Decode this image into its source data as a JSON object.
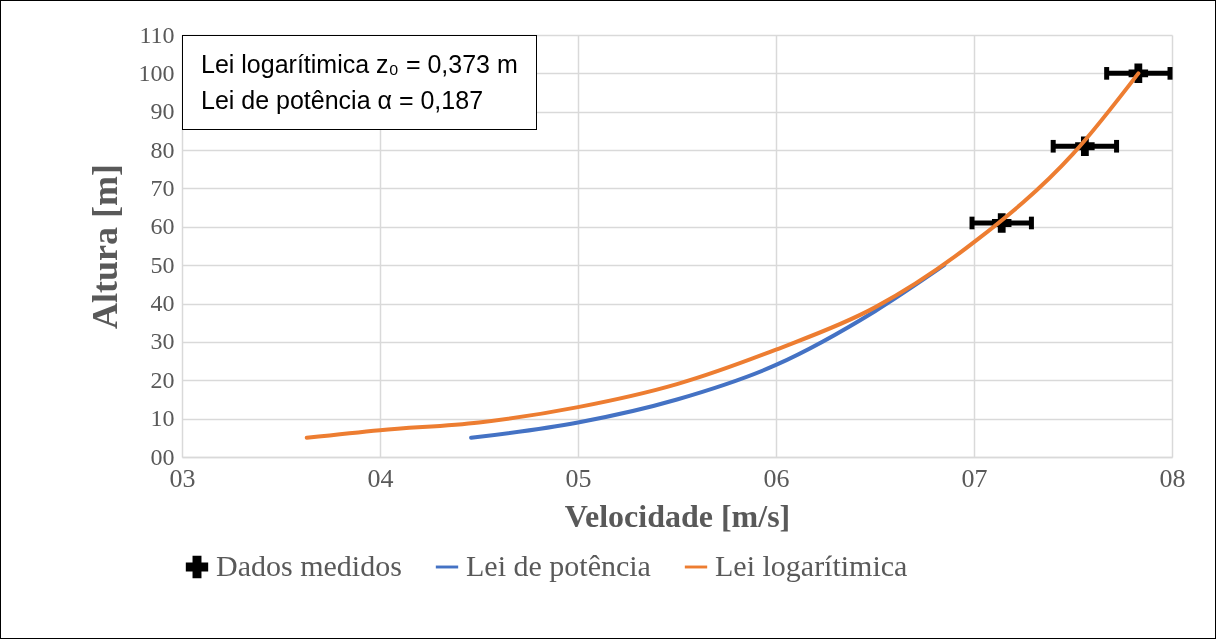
{
  "chart_data": {
    "type": "line",
    "xlabel": "Velocidade [m/s]",
    "ylabel": "Altura [m]",
    "annotations": [
      "Lei logarítimica z₀ = 0,373 m",
      "Lei de potência α = 0,187"
    ],
    "xlim": [
      3,
      8
    ],
    "xticks": [
      {
        "value": 3,
        "label": "03"
      },
      {
        "value": 4,
        "label": "04"
      },
      {
        "value": 5,
        "label": "05"
      },
      {
        "value": 6,
        "label": "06"
      },
      {
        "value": 7,
        "label": "07"
      },
      {
        "value": 8,
        "label": "08"
      }
    ],
    "ylim": [
      0,
      110
    ],
    "yticks": [
      {
        "value": 0,
        "label": "00"
      },
      10,
      20,
      30,
      40,
      50,
      60,
      70,
      80,
      90,
      100,
      110
    ],
    "grid": true,
    "legend": "bottom",
    "line_style": "solid",
    "series": [
      {
        "name": "Dados medidos",
        "type": "scatter",
        "marker": "cross",
        "color": "#000000",
        "x": [
          7.14,
          7.56,
          7.83
        ],
        "values": [
          61,
          81,
          100
        ],
        "xerrors": [
          0.15,
          0.16,
          0.16
        ]
      },
      {
        "name": "Lei de potência",
        "type": "line",
        "color": "#4472c4",
        "x": [
          4.46,
          5,
          5.5,
          6,
          6.5,
          6.85
        ],
        "values": [
          5,
          9,
          15,
          24,
          38,
          50
        ]
      },
      {
        "name": "Lei logarítimica",
        "type": "line",
        "color": "#ed7d31",
        "x": [
          3.63,
          4,
          4.5,
          5,
          5.5,
          6,
          6.5,
          7,
          7.5,
          7.83
        ],
        "values": [
          5,
          7,
          9,
          13,
          19,
          28,
          39,
          56,
          79,
          100
        ]
      }
    ]
  }
}
